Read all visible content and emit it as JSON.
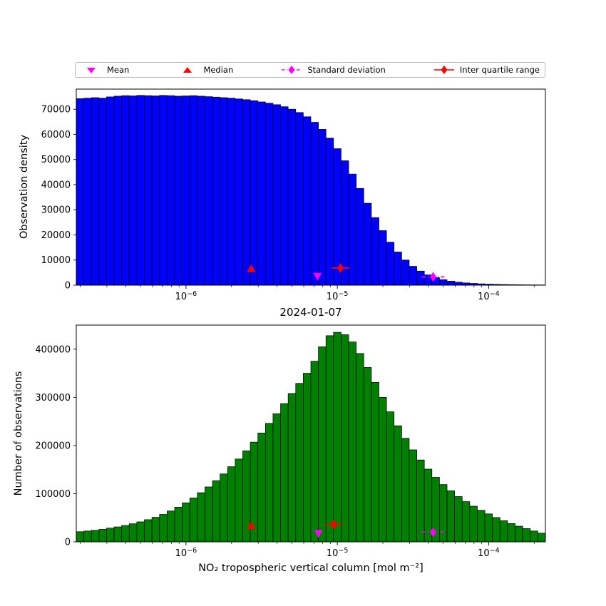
{
  "figure": {
    "background": "#ffffff"
  },
  "legend": {
    "items": [
      {
        "label": "Mean",
        "marker": "triangle-down",
        "color": "#ff00ff",
        "line": "none"
      },
      {
        "label": "Median",
        "marker": "triangle-up",
        "color": "#ff0000",
        "line": "none"
      },
      {
        "label": "Standard deviation",
        "marker": "diamond",
        "color": "#ff00ff",
        "line": "dashdot"
      },
      {
        "label": "Inter quartile range",
        "marker": "diamond",
        "color": "#ff0000",
        "line": "solid"
      }
    ]
  },
  "chart_data": [
    {
      "type": "bar",
      "title": "",
      "ylabel": "Observation density",
      "xlabel": "",
      "xscale": "log",
      "log10_xlim": [
        -6.725,
        -3.625
      ],
      "ylim": [
        0,
        78000
      ],
      "yticks": [
        0,
        10000,
        20000,
        30000,
        40000,
        50000,
        60000,
        70000
      ],
      "xtick_exponents": [
        -6,
        -5,
        -4
      ],
      "bar_color": "#0000ff",
      "bar_edge": "#000000",
      "log10_bin_start": -6.725,
      "log10_bin_width": 0.05,
      "values": [
        74200,
        74400,
        74600,
        74400,
        74900,
        75200,
        75400,
        75300,
        75500,
        75400,
        75300,
        75500,
        75400,
        75200,
        75300,
        75400,
        75200,
        75000,
        74800,
        74600,
        74400,
        74100,
        73800,
        73400,
        72900,
        72400,
        71800,
        71000,
        70000,
        68700,
        67000,
        64800,
        62000,
        58500,
        54300,
        49500,
        44200,
        38500,
        32600,
        26900,
        21700,
        17100,
        13200,
        10000,
        7500,
        5600,
        4100,
        3000,
        2200,
        1600,
        1200,
        900,
        700,
        540,
        420,
        330,
        260,
        210,
        170,
        140,
        115,
        95
      ],
      "markers": [
        {
          "name": "median",
          "label": "Median",
          "shape": "triangle-up",
          "color": "#ff0000",
          "x": 2.7e-06,
          "y": 6500
        },
        {
          "name": "mean",
          "label": "Mean",
          "shape": "triangle-down",
          "color": "#ff00ff",
          "x": 7.4e-06,
          "y": 3600
        },
        {
          "name": "iqr",
          "label": "Inter quartile range",
          "shape": "diamond",
          "color": "#ff0000",
          "x": 1.05e-05,
          "y": 6800,
          "xerr": [
            9.2e-06,
            1.2e-05
          ],
          "linestyle": "solid"
        },
        {
          "name": "std",
          "label": "Standard deviation",
          "shape": "diamond",
          "color": "#ff00ff",
          "x": 4.3e-05,
          "y": 3300,
          "xerr": [
            3.6e-05,
            5.1e-05
          ],
          "linestyle": "dashdot"
        }
      ]
    },
    {
      "type": "bar",
      "title": "2024-01-07",
      "ylabel": "Number of observations",
      "xlabel": "NO₂ tropospheric vertical column [mol m⁻²]",
      "xscale": "log",
      "log10_xlim": [
        -6.725,
        -3.625
      ],
      "ylim": [
        0,
        450000
      ],
      "yticks": [
        0,
        100000,
        200000,
        300000,
        400000
      ],
      "xtick_exponents": [
        -6,
        -5,
        -4
      ],
      "bar_color": "#008000",
      "bar_edge": "#000000",
      "log10_bin_start": -6.725,
      "log10_bin_width": 0.05,
      "values": [
        21000,
        22500,
        24000,
        26000,
        28500,
        31000,
        34000,
        37500,
        41500,
        46000,
        51000,
        57000,
        64000,
        72000,
        81000,
        91000,
        102000,
        114000,
        127000,
        141000,
        156000,
        172000,
        189000,
        207000,
        226000,
        246000,
        266000,
        287000,
        308000,
        329000,
        350000,
        375000,
        405000,
        428000,
        435000,
        430000,
        415000,
        391000,
        362000,
        331000,
        300000,
        270000,
        241000,
        215000,
        191000,
        170000,
        151000,
        134000,
        119000,
        106000,
        94000,
        83500,
        74000,
        65500,
        58000,
        50500,
        44000,
        38000,
        32500,
        27500,
        22500,
        18000
      ],
      "markers": [
        {
          "name": "median",
          "label": "Median",
          "shape": "triangle-up",
          "color": "#ff0000",
          "x": 2.7e-06,
          "y": 33000
        },
        {
          "name": "mean",
          "label": "Mean",
          "shape": "triangle-down",
          "color": "#ff00ff",
          "x": 7.5e-06,
          "y": 18000
        },
        {
          "name": "iqr",
          "label": "Inter quartile range",
          "shape": "diamond",
          "color": "#ff0000",
          "x": 9.5e-06,
          "y": 36000,
          "xerr": [
            8.3e-06,
            1.09e-05
          ],
          "linestyle": "solid"
        },
        {
          "name": "std",
          "label": "Standard deviation",
          "shape": "diamond",
          "color": "#ff00ff",
          "x": 4.3e-05,
          "y": 20000,
          "xerr": [
            3.6e-05,
            5.1e-05
          ],
          "linestyle": "dashdot"
        }
      ]
    }
  ]
}
